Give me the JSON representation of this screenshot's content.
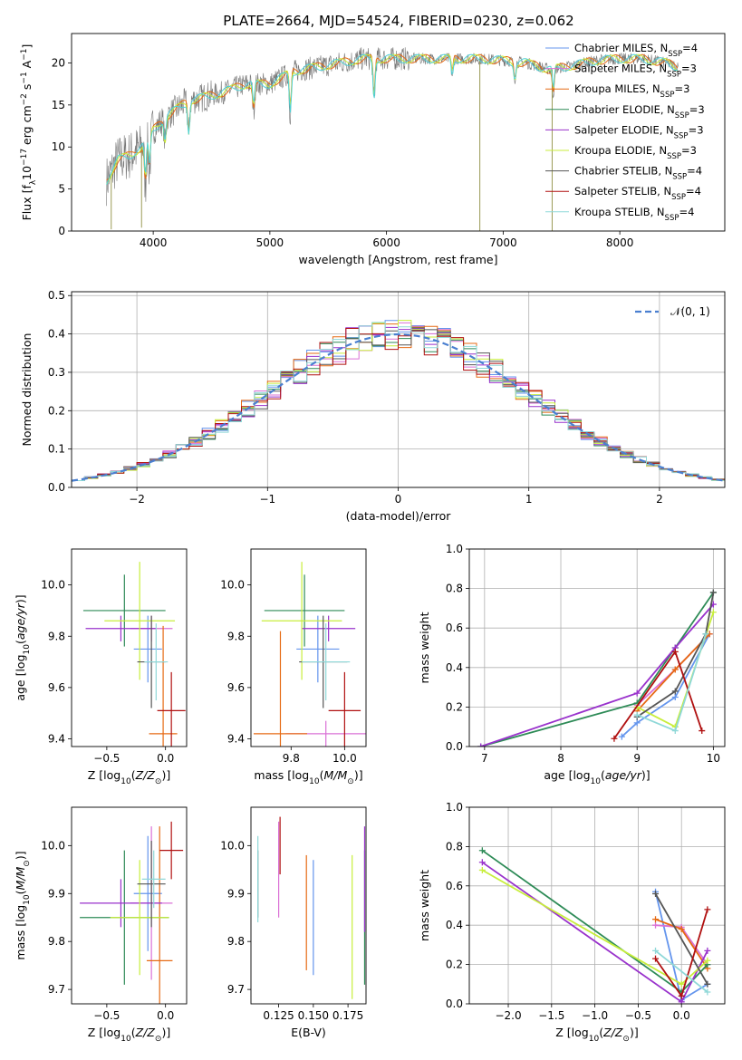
{
  "figure_title": "PLATE=2664, MJD=54524, FIBERID=0230, z=0.062",
  "colors": {
    "cornflower": "#6495ed",
    "orchid": "#da70d6",
    "darkorange": "#e66a14",
    "seagreen": "#2e8b57",
    "darkmagenta": "#9932cc",
    "greenyellow": "#c8ee3c",
    "dimgrey": "#555555",
    "darkred": "#b01010",
    "paleturquoise": "#8fd8d8",
    "spectrum": "#777777",
    "model": "#4fd0d6"
  },
  "chart_data": [
    {
      "id": "spectrum",
      "type": "line",
      "title": "PLATE=2664, MJD=54524, FIBERID=0230, z=0.062",
      "xlabel": "wavelength [Angstrom, rest frame]",
      "ylabel": "Flux [f_λ10^-17 erg cm^-2 s^-1 A^-1]",
      "xlim": [
        3300,
        8900
      ],
      "ylim": [
        0,
        23.5
      ],
      "xticks": [
        4000,
        5000,
        6000,
        7000,
        8000
      ],
      "yticks": [
        0,
        5,
        10,
        15,
        20
      ],
      "continuum": {
        "x": [
          3600,
          3700,
          3800,
          3900,
          4000,
          4100,
          4200,
          4300,
          4400,
          4600,
          4800,
          5000,
          5200,
          5400,
          5600,
          5800,
          6000,
          6200,
          6400,
          6600,
          6800,
          7000,
          7200,
          7400,
          7600,
          7800,
          8000,
          8200,
          8400,
          8500
        ],
        "y": [
          6.0,
          8.5,
          9.0,
          10.0,
          12.0,
          13.5,
          14.5,
          15.5,
          15.8,
          16.5,
          17.5,
          17.5,
          19.0,
          19.5,
          20.0,
          20.5,
          20.5,
          20.5,
          20.5,
          20.5,
          20.5,
          20.3,
          20.0,
          19.2,
          19.7,
          20.3,
          20.5,
          20.5,
          20.0,
          19.5
        ]
      },
      "dips": [
        {
          "x": 3933,
          "depth": 5
        },
        {
          "x": 3968,
          "depth": 4
        },
        {
          "x": 4101,
          "depth": 3
        },
        {
          "x": 4304,
          "depth": 4
        },
        {
          "x": 4861,
          "depth": 3
        },
        {
          "x": 5175,
          "depth": 5
        },
        {
          "x": 5893,
          "depth": 5
        },
        {
          "x": 6563,
          "depth": 2
        },
        {
          "x": 7100,
          "depth": 2
        },
        {
          "x": 7430,
          "depth": 3
        }
      ],
      "legend": [
        {
          "label": "Chabrier MILES, N",
          "sub": "SSP",
          "suffix": "=4",
          "color": "cornflower"
        },
        {
          "label": "Salpeter MILES, N",
          "sub": "SSP",
          "suffix": "=3",
          "color": "orchid"
        },
        {
          "label": "Kroupa MILES, N",
          "sub": "SSP",
          "suffix": "=3",
          "color": "darkorange"
        },
        {
          "label": "Chabrier ELODIE, N",
          "sub": "SSP",
          "suffix": "=3",
          "color": "seagreen"
        },
        {
          "label": "Salpeter ELODIE, N",
          "sub": "SSP",
          "suffix": "=3",
          "color": "darkmagenta"
        },
        {
          "label": "Kroupa ELODIE, N",
          "sub": "SSP",
          "suffix": "=3",
          "color": "greenyellow"
        },
        {
          "label": "Chabrier STELIB, N",
          "sub": "SSP",
          "suffix": "=4",
          "color": "dimgrey"
        },
        {
          "label": "Salpeter STELIB, N",
          "sub": "SSP",
          "suffix": "=4",
          "color": "darkred"
        },
        {
          "label": "Kroupa STELIB, N",
          "sub": "SSP",
          "suffix": "=4",
          "color": "paleturquoise"
        }
      ]
    },
    {
      "id": "residuals",
      "type": "bar",
      "xlabel": "(data-model)/error",
      "ylabel": "Normed distribution",
      "xlim": [
        -2.5,
        2.5
      ],
      "ylim": [
        0,
        0.51
      ],
      "xticks": [
        -2,
        -1,
        0,
        1,
        2
      ],
      "yticks": [
        0.0,
        0.1,
        0.2,
        0.3,
        0.4,
        0.5
      ],
      "grid": true,
      "bin_width": 0.1,
      "legend_label": "𝒩(0, 1)",
      "reference_curve": "normal(0,1)",
      "reference_color": "#4a7fd0"
    },
    {
      "id": "age-vs-Z",
      "type": "scatter",
      "xlabel": "Z [log10(Z/Z⊙)]",
      "ylabel": "age  [log10(age/yr)]",
      "xlim": [
        -0.8,
        0.18
      ],
      "ylim": [
        9.37,
        10.14
      ],
      "xticks": [
        -0.5,
        0.0
      ],
      "yticks": [
        9.4,
        9.6,
        9.8,
        10.0
      ],
      "points": [
        {
          "color": "cornflower",
          "x": -0.15,
          "y": 9.75,
          "xerr": 0.12,
          "yerr": 0.13
        },
        {
          "color": "orchid",
          "x": -0.12,
          "y": 9.83,
          "xerr": 0.18,
          "yerr": 0.05
        },
        {
          "color": "darkorange",
          "x": -0.02,
          "y": 9.42,
          "xerr": 0.12,
          "yerr": 0.42
        },
        {
          "color": "seagreen",
          "x": -0.35,
          "y": 9.9,
          "xerr": 0.35,
          "yerr": 0.14
        },
        {
          "color": "darkmagenta",
          "x": -0.38,
          "y": 9.83,
          "xerr": 0.3,
          "yerr": 0.05
        },
        {
          "color": "greenyellow",
          "x": -0.22,
          "y": 9.86,
          "xerr": 0.3,
          "yerr": 0.23
        },
        {
          "color": "dimgrey",
          "x": -0.12,
          "y": 9.7,
          "xerr": 0.12,
          "yerr": 0.18
        },
        {
          "color": "darkred",
          "x": 0.05,
          "y": 9.51,
          "xerr": 0.12,
          "yerr": 0.15
        },
        {
          "color": "paleturquoise",
          "x": -0.08,
          "y": 9.7,
          "xerr": 0.1,
          "yerr": 0.15
        }
      ]
    },
    {
      "id": "age-vs-mass",
      "type": "scatter",
      "xlabel": "mass [log10(M/M⊙)]",
      "ylabel": "",
      "xlim": [
        9.65,
        10.08
      ],
      "ylim": [
        9.37,
        10.14
      ],
      "xticks": [
        9.8,
        10.0
      ],
      "yticks": [
        9.4,
        9.6,
        9.8,
        10.0
      ],
      "points": [
        {
          "color": "cornflower",
          "x": 9.9,
          "y": 9.75,
          "xerr": 0.08,
          "yerr": 0.13
        },
        {
          "color": "orchid",
          "x": 9.93,
          "y": 9.42,
          "xerr": 0.15,
          "yerr": 0.05
        },
        {
          "color": "darkorange",
          "x": 9.76,
          "y": 9.42,
          "xerr": 0.1,
          "yerr": 0.4
        },
        {
          "color": "seagreen",
          "x": 9.85,
          "y": 9.9,
          "xerr": 0.15,
          "yerr": 0.14
        },
        {
          "color": "darkmagenta",
          "x": 9.94,
          "y": 9.83,
          "xerr": 0.1,
          "yerr": 0.05
        },
        {
          "color": "greenyellow",
          "x": 9.84,
          "y": 9.86,
          "xerr": 0.15,
          "yerr": 0.23
        },
        {
          "color": "dimgrey",
          "x": 9.92,
          "y": 9.7,
          "xerr": 0.09,
          "yerr": 0.18
        },
        {
          "color": "darkred",
          "x": 10.0,
          "y": 9.51,
          "xerr": 0.06,
          "yerr": 0.15
        },
        {
          "color": "paleturquoise",
          "x": 9.93,
          "y": 9.7,
          "xerr": 0.09,
          "yerr": 0.15
        }
      ]
    },
    {
      "id": "weight-vs-age",
      "type": "line",
      "xlabel": "age  [log10(age/yr)]",
      "ylabel": "mass weight",
      "xlim": [
        6.8,
        10.15
      ],
      "ylim": [
        0,
        1
      ],
      "xticks": [
        7,
        8,
        9,
        10
      ],
      "yticks": [
        0.0,
        0.2,
        0.4,
        0.6,
        0.8,
        1.0
      ],
      "grid": true,
      "series": [
        {
          "color": "cornflower",
          "x": [
            8.8,
            9.0,
            9.5,
            9.95
          ],
          "y": [
            0.05,
            0.12,
            0.25,
            0.57
          ]
        },
        {
          "color": "orchid",
          "x": [
            9.0,
            9.5,
            9.95
          ],
          "y": [
            0.21,
            0.39,
            0.57
          ]
        },
        {
          "color": "darkorange",
          "x": [
            9.0,
            9.5,
            9.95
          ],
          "y": [
            0.18,
            0.39,
            0.57
          ]
        },
        {
          "color": "seagreen",
          "x": [
            6.95,
            9.0,
            9.5,
            10.0
          ],
          "y": [
            0.0,
            0.22,
            0.5,
            0.78
          ]
        },
        {
          "color": "darkmagenta",
          "x": [
            6.95,
            9.0,
            9.5,
            10.0
          ],
          "y": [
            0.0,
            0.27,
            0.5,
            0.72
          ]
        },
        {
          "color": "greenyellow",
          "x": [
            9.0,
            9.5,
            10.0
          ],
          "y": [
            0.2,
            0.1,
            0.68
          ]
        },
        {
          "color": "dimgrey",
          "x": [
            9.0,
            9.5,
            9.9,
            10.0
          ],
          "y": [
            0.15,
            0.28,
            0.57,
            0.78
          ]
        },
        {
          "color": "darkred",
          "x": [
            8.7,
            9.5,
            9.85
          ],
          "y": [
            0.04,
            0.48,
            0.08
          ]
        },
        {
          "color": "paleturquoise",
          "x": [
            9.0,
            9.5,
            9.9
          ],
          "y": [
            0.16,
            0.08,
            0.57
          ]
        }
      ]
    },
    {
      "id": "mass-vs-Z",
      "type": "scatter",
      "xlabel": "Z [log10(Z/Z⊙)]",
      "ylabel": "mass [log10(M/M⊙)]",
      "xlim": [
        -0.8,
        0.18
      ],
      "ylim": [
        9.67,
        10.08
      ],
      "xticks": [
        -0.5,
        0.0
      ],
      "yticks": [
        9.7,
        9.8,
        9.9,
        10.0
      ],
      "points": [
        {
          "color": "cornflower",
          "x": -0.15,
          "y": 9.9,
          "xerr": 0.12,
          "yerr": 0.12
        },
        {
          "color": "orchid",
          "x": -0.12,
          "y": 9.88,
          "xerr": 0.18,
          "yerr": 0.16
        },
        {
          "color": "darkorange",
          "x": -0.05,
          "y": 9.76,
          "xerr": 0.11,
          "yerr": 0.28
        },
        {
          "color": "seagreen",
          "x": -0.35,
          "y": 9.85,
          "xerr": 0.38,
          "yerr": 0.14
        },
        {
          "color": "darkmagenta",
          "x": -0.38,
          "y": 9.88,
          "xerr": 0.35,
          "yerr": 0.05
        },
        {
          "color": "greenyellow",
          "x": -0.22,
          "y": 9.85,
          "xerr": 0.25,
          "yerr": 0.12
        },
        {
          "color": "dimgrey",
          "x": -0.12,
          "y": 9.92,
          "xerr": 0.12,
          "yerr": 0.09
        },
        {
          "color": "darkred",
          "x": 0.05,
          "y": 9.99,
          "xerr": 0.1,
          "yerr": 0.06
        },
        {
          "color": "paleturquoise",
          "x": -0.1,
          "y": 9.93,
          "xerr": 0.1,
          "yerr": 0.06
        }
      ]
    },
    {
      "id": "mass-vs-ebv",
      "type": "scatter",
      "xlabel": "E(B-V)",
      "ylabel": "",
      "xlim": [
        0.105,
        0.188
      ],
      "ylim": [
        9.67,
        10.08
      ],
      "xticks": [
        0.125,
        0.15,
        0.175
      ],
      "xticklabels": [
        "0.125",
        "0.150",
        "0.175"
      ],
      "yticks": [
        9.7,
        9.8,
        9.9,
        10.0
      ],
      "points": [
        {
          "color": "cornflower",
          "x": 0.15,
          "y": 9.85,
          "yerr": 0.12
        },
        {
          "color": "orchid",
          "x": 0.125,
          "y": 9.95,
          "yerr": 0.1
        },
        {
          "color": "darkorange",
          "x": 0.145,
          "y": 9.86,
          "yerr": 0.12
        },
        {
          "color": "seagreen",
          "x": 0.187,
          "y": 9.85,
          "yerr": 0.14
        },
        {
          "color": "darkmagenta",
          "x": 0.187,
          "y": 9.93,
          "yerr": 0.11
        },
        {
          "color": "greenyellow",
          "x": 0.178,
          "y": 9.83,
          "yerr": 0.15
        },
        {
          "color": "dimgrey",
          "x": 0.11,
          "y": 9.92,
          "yerr": 0.07
        },
        {
          "color": "darkred",
          "x": 0.126,
          "y": 10.0,
          "yerr": 0.06
        },
        {
          "color": "paleturquoise",
          "x": 0.11,
          "y": 9.93,
          "yerr": 0.09
        }
      ]
    },
    {
      "id": "weight-vs-Z",
      "type": "line",
      "xlabel": "Z [log10(Z/Z⊙)]",
      "ylabel": "mass weight",
      "xlim": [
        -2.45,
        0.5
      ],
      "ylim": [
        0,
        1
      ],
      "xticks": [
        -2.0,
        -1.5,
        -1.0,
        -0.5,
        0.0
      ],
      "yticks": [
        0.0,
        0.2,
        0.4,
        0.6,
        0.8,
        1.0
      ],
      "grid": true,
      "series": [
        {
          "color": "cornflower",
          "x": [
            -0.3,
            0.0,
            0.3
          ],
          "y": [
            0.57,
            0.02,
            0.1
          ]
        },
        {
          "color": "orchid",
          "x": [
            -0.3,
            0.0,
            0.3
          ],
          "y": [
            0.4,
            0.39,
            0.2
          ]
        },
        {
          "color": "darkorange",
          "x": [
            -0.3,
            0.0,
            0.3
          ],
          "y": [
            0.43,
            0.38,
            0.18
          ]
        },
        {
          "color": "seagreen",
          "x": [
            -2.3,
            0.0,
            0.3
          ],
          "y": [
            0.78,
            0.06,
            0.2
          ]
        },
        {
          "color": "darkmagenta",
          "x": [
            -2.3,
            0.0,
            0.3
          ],
          "y": [
            0.72,
            0.01,
            0.27
          ]
        },
        {
          "color": "greenyellow",
          "x": [
            -2.3,
            0.0,
            0.3
          ],
          "y": [
            0.68,
            0.1,
            0.22
          ]
        },
        {
          "color": "dimgrey",
          "x": [
            -0.3,
            0.3
          ],
          "y": [
            0.56,
            0.1
          ]
        },
        {
          "color": "darkred",
          "x": [
            -0.3,
            0.0,
            0.3
          ],
          "y": [
            0.23,
            0.04,
            0.48
          ]
        },
        {
          "color": "paleturquoise",
          "x": [
            -0.3,
            0.3
          ],
          "y": [
            0.27,
            0.06
          ]
        }
      ]
    }
  ]
}
